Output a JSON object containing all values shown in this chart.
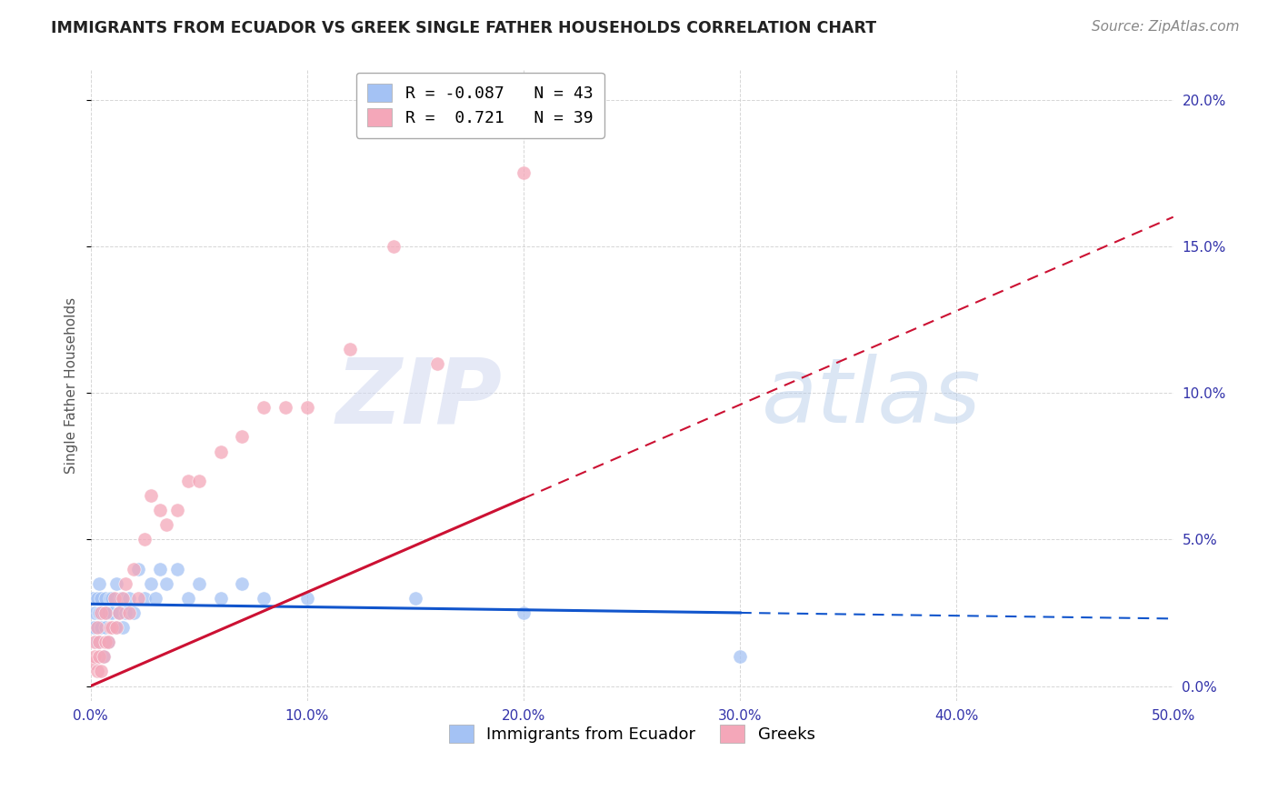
{
  "title": "IMMIGRANTS FROM ECUADOR VS GREEK SINGLE FATHER HOUSEHOLDS CORRELATION CHART",
  "source": "Source: ZipAtlas.com",
  "ylabel": "Single Father Households",
  "legend_label1": "Immigrants from Ecuador",
  "legend_label2": "Greeks",
  "r1": -0.087,
  "n1": 43,
  "r2": 0.721,
  "n2": 39,
  "color_ecuador": "#a4c2f4",
  "color_greek": "#f4a7b9",
  "color_line_ecuador": "#1155cc",
  "color_line_greek": "#cc1133",
  "xlim": [
    0.0,
    0.5
  ],
  "ylim": [
    -0.005,
    0.21
  ],
  "xticks": [
    0.0,
    0.1,
    0.2,
    0.3,
    0.4,
    0.5
  ],
  "yticks": [
    0.0,
    0.05,
    0.1,
    0.15,
    0.2
  ],
  "xtick_labels": [
    "0.0%",
    "10.0%",
    "20.0%",
    "30.0%",
    "40.0%",
    "50.0%"
  ],
  "ytick_labels_right": [
    "0.0%",
    "5.0%",
    "10.0%",
    "15.0%",
    "20.0%"
  ],
  "ecuador_x": [
    0.001,
    0.001,
    0.002,
    0.002,
    0.003,
    0.003,
    0.004,
    0.004,
    0.005,
    0.005,
    0.006,
    0.006,
    0.007,
    0.007,
    0.008,
    0.008,
    0.009,
    0.01,
    0.01,
    0.011,
    0.012,
    0.013,
    0.014,
    0.015,
    0.016,
    0.018,
    0.02,
    0.022,
    0.025,
    0.028,
    0.03,
    0.032,
    0.035,
    0.04,
    0.045,
    0.05,
    0.06,
    0.07,
    0.08,
    0.1,
    0.15,
    0.2,
    0.3
  ],
  "ecuador_y": [
    0.02,
    0.03,
    0.02,
    0.025,
    0.015,
    0.03,
    0.025,
    0.035,
    0.02,
    0.03,
    0.01,
    0.025,
    0.02,
    0.03,
    0.025,
    0.015,
    0.03,
    0.025,
    0.03,
    0.02,
    0.035,
    0.025,
    0.03,
    0.02,
    0.025,
    0.03,
    0.025,
    0.04,
    0.03,
    0.035,
    0.03,
    0.04,
    0.035,
    0.04,
    0.03,
    0.035,
    0.03,
    0.035,
    0.03,
    0.03,
    0.03,
    0.025,
    0.01
  ],
  "greek_x": [
    0.001,
    0.002,
    0.002,
    0.003,
    0.003,
    0.004,
    0.004,
    0.005,
    0.005,
    0.006,
    0.007,
    0.007,
    0.008,
    0.009,
    0.01,
    0.011,
    0.012,
    0.013,
    0.015,
    0.016,
    0.018,
    0.02,
    0.022,
    0.025,
    0.028,
    0.032,
    0.035,
    0.04,
    0.045,
    0.05,
    0.06,
    0.07,
    0.08,
    0.09,
    0.1,
    0.12,
    0.14,
    0.16,
    0.2
  ],
  "greek_y": [
    0.008,
    0.01,
    0.015,
    0.005,
    0.02,
    0.01,
    0.015,
    0.005,
    0.025,
    0.01,
    0.015,
    0.025,
    0.015,
    0.02,
    0.02,
    0.03,
    0.02,
    0.025,
    0.03,
    0.035,
    0.025,
    0.04,
    0.03,
    0.05,
    0.065,
    0.06,
    0.055,
    0.06,
    0.07,
    0.07,
    0.08,
    0.085,
    0.095,
    0.095,
    0.095,
    0.115,
    0.15,
    0.11,
    0.175
  ],
  "watermark_zip": "ZIP",
  "watermark_atlas": "atlas",
  "background_color": "#ffffff",
  "grid_color": "#cccccc"
}
